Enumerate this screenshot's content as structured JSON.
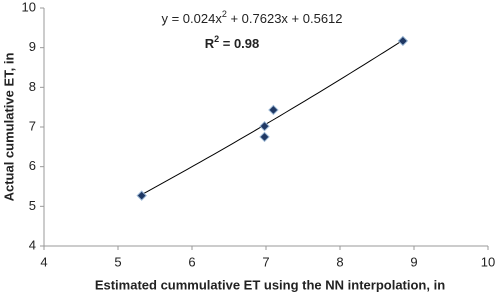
{
  "chart_data": {
    "type": "scatter",
    "x": [
      5.32,
      6.98,
      6.98,
      7.1,
      8.85
    ],
    "series": [
      {
        "color": "#1f3864",
        "values": [
          5.27,
          7.02,
          6.75,
          7.43,
          9.17
        ]
      }
    ],
    "xlim": [
      4,
      10
    ],
    "xticks": [
      4,
      5,
      6,
      7,
      8,
      9,
      10
    ],
    "ylim": [
      4,
      10
    ],
    "yticks": [
      4,
      5,
      6,
      7,
      8,
      9,
      10
    ],
    "xlabel": "Estimated cummulative ET using the NN interpolation, in",
    "ylabel": "Actual cumulative ET, in",
    "trendline": {
      "a": 0.024,
      "b": 0.7623,
      "c": 0.5612,
      "color": "#000000"
    },
    "equation": {
      "start": "y = 0.024x",
      "exponent": "2",
      "end": " + 0.7623x + 0.5612"
    },
    "r_squared": {
      "start": "R",
      "exponent": "2",
      "end": " = 0.98"
    },
    "grid": false
  }
}
